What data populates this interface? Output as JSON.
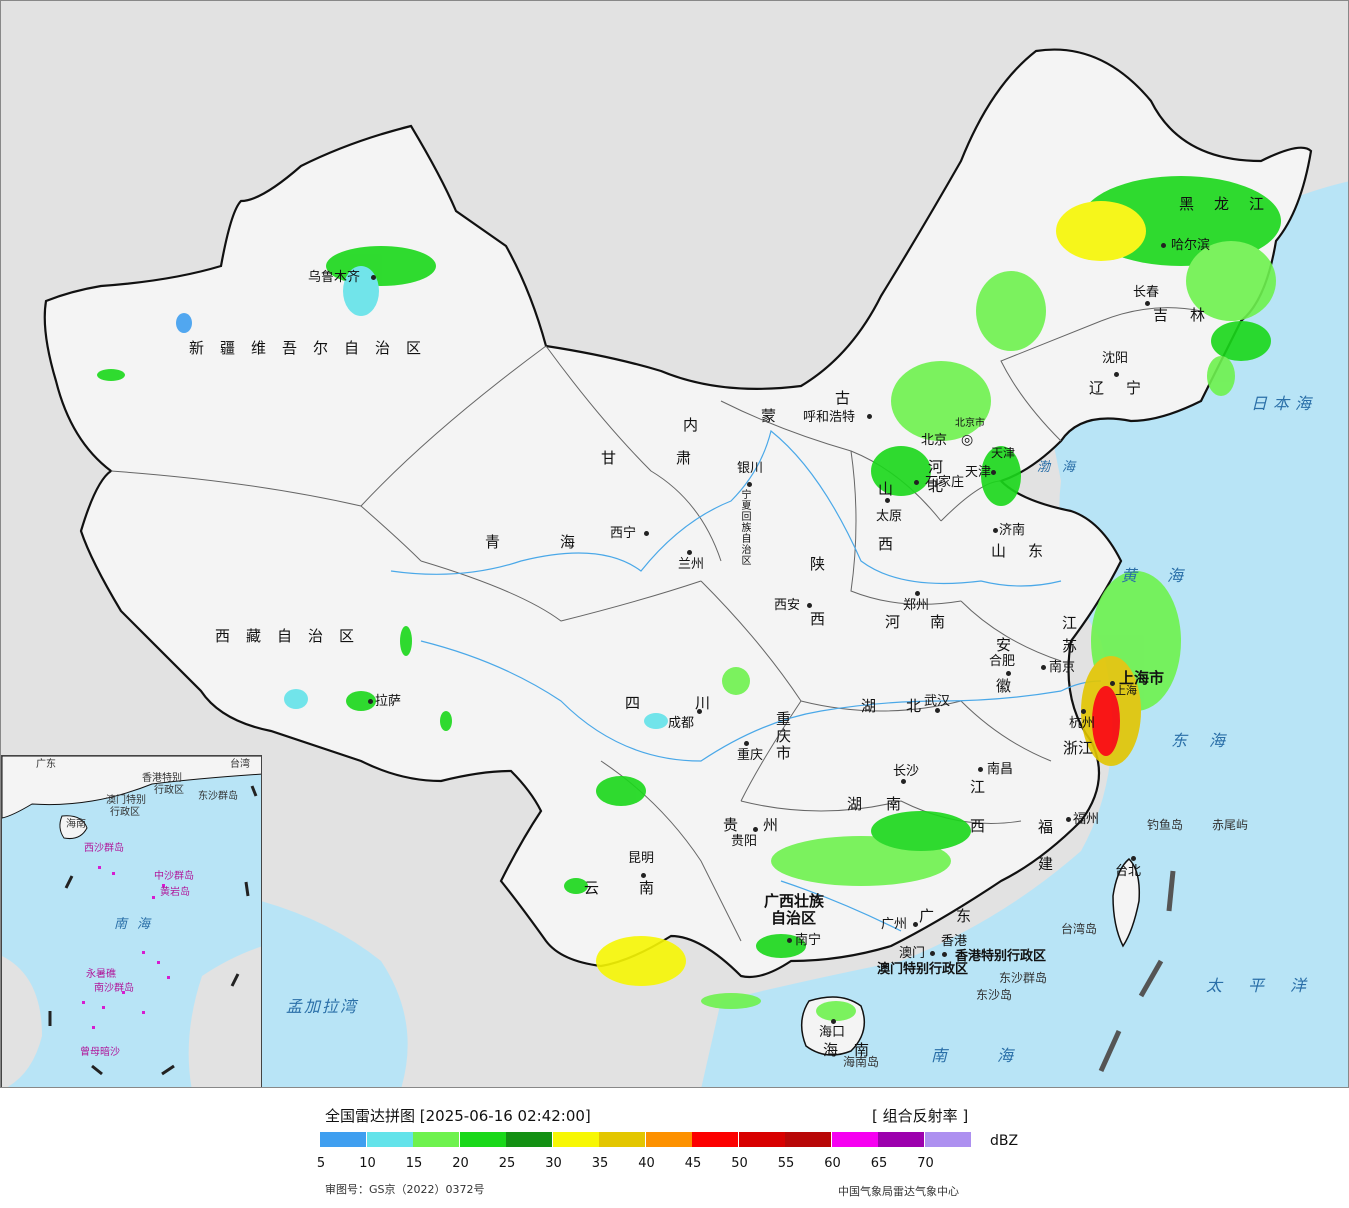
{
  "colors": {
    "land": "#f4f4f4",
    "foreign_land": "#e2e2e2",
    "sea": "#b8e4f6",
    "border": "#111111",
    "river": "#4aa8e8"
  },
  "cities": [
    {
      "name": "乌鲁木齐"
    },
    {
      "name": "拉萨"
    },
    {
      "name": "西宁"
    },
    {
      "name": "兰州"
    },
    {
      "name": "银川"
    },
    {
      "name": "呼和浩特"
    },
    {
      "name": "北京"
    },
    {
      "name": "天津"
    },
    {
      "name": "石家庄"
    },
    {
      "name": "太原"
    },
    {
      "name": "济南"
    },
    {
      "name": "郑州"
    },
    {
      "name": "西安"
    },
    {
      "name": "成都"
    },
    {
      "name": "重庆"
    },
    {
      "name": "贵阳"
    },
    {
      "name": "昆明"
    },
    {
      "name": "南宁"
    },
    {
      "name": "海口"
    },
    {
      "name": "广州"
    },
    {
      "name": "澳门"
    },
    {
      "name": "香港"
    },
    {
      "name": "长沙"
    },
    {
      "name": "南昌"
    },
    {
      "name": "福州"
    },
    {
      "name": "台北"
    },
    {
      "name": "杭州"
    },
    {
      "name": "上海"
    },
    {
      "name": "南京"
    },
    {
      "name": "合肥"
    },
    {
      "name": "武汉"
    },
    {
      "name": "沈阳"
    },
    {
      "name": "长春"
    },
    {
      "name": "哈尔滨"
    }
  ],
  "provinces": [
    "新疆维吾尔自治区",
    "西藏自治区",
    "青海",
    "甘肃",
    "内蒙古",
    "黑龙江",
    "吉林",
    "辽宁",
    "河北",
    "山西",
    "山东",
    "河南",
    "陕西",
    "四川",
    "重庆市",
    "贵州",
    "云南",
    "广西壮族",
    "自治区",
    "广东",
    "海南",
    "湖南",
    "湖北",
    "江西",
    "福建",
    "浙江",
    "江苏",
    "安徽",
    "上海市",
    "宁夏回族自治区",
    "天津",
    "北京市",
    "香港特别行政区",
    "澳门特别行政区"
  ],
  "seas": [
    "日本海",
    "黄海",
    "东海",
    "太平洋",
    "南海",
    "孟加拉湾",
    "渤海"
  ],
  "islands": [
    "钓鱼岛",
    "赤尾屿",
    "台湾岛",
    "海南岛",
    "东沙群岛",
    "东沙岛"
  ],
  "inset": {
    "labels": [
      "广东",
      "台湾",
      "香港特别",
      "行政区",
      "澳门特别",
      "行政区",
      "东沙群岛",
      "海南",
      "西沙群岛",
      "中沙群岛",
      "黄岩岛",
      "南海",
      "永暑礁",
      "南沙群岛",
      "曾母暗沙"
    ]
  },
  "legend": {
    "title": "全国雷达拼图 [2025-06-16 02:42:00]",
    "product": "[ 组合反射率 ]",
    "unit": "dBZ",
    "ticks": [
      "5",
      "10",
      "15",
      "20",
      "25",
      "30",
      "35",
      "40",
      "45",
      "50",
      "55",
      "60",
      "65",
      "70"
    ],
    "colors": [
      "#3f9ff0",
      "#63e3ea",
      "#6ef24e",
      "#1ad81a",
      "#139013",
      "#f7f704",
      "#e3c600",
      "#fd9100",
      "#fc0000",
      "#d80000",
      "#b80707",
      "#f600f1",
      "#9c00ad",
      "#ad90f0"
    ],
    "review_no": "审图号：GS京（2022）0372号",
    "source": "中国气象局雷达气象中心"
  }
}
